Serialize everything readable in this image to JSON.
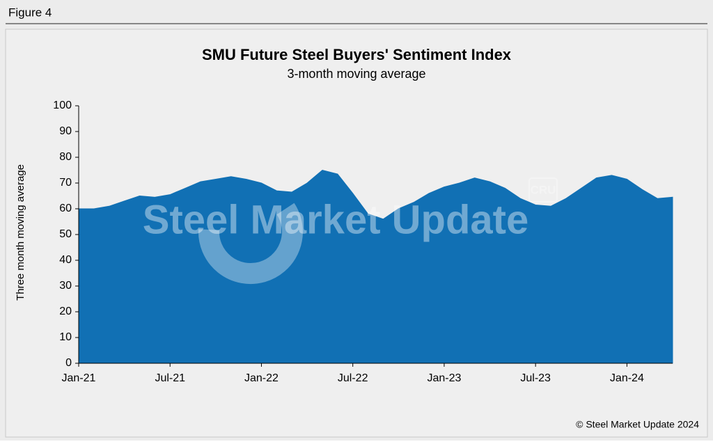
{
  "figure_label": "Figure 4",
  "copyright": "© Steel Market Update 2024",
  "chart_data": {
    "type": "area",
    "title": "SMU Future Steel Buyers' Sentiment Index",
    "subtitle": "3-month moving average",
    "y_label": "Three month moving average",
    "watermark": "Steel Market Update",
    "watermark_badge": "CRU",
    "color": "#1170b4",
    "categories": [
      "Jan-21",
      null,
      null,
      null,
      null,
      null,
      "Jul-21",
      null,
      null,
      null,
      null,
      null,
      "Jan-22",
      null,
      null,
      null,
      null,
      null,
      "Jul-22",
      null,
      null,
      null,
      null,
      null,
      "Jan-23",
      null,
      null,
      null,
      null,
      null,
      "Jul-23",
      null,
      null,
      null,
      null,
      null,
      "Jan-24",
      null,
      null,
      null
    ],
    "values": [
      60,
      60,
      61,
      63,
      65,
      64.5,
      65.5,
      68,
      70.5,
      71.5,
      72.5,
      71.5,
      70,
      67,
      66.5,
      70,
      75,
      73.5,
      66,
      58,
      56,
      60,
      62.5,
      66,
      68.5,
      70,
      72,
      70.5,
      68,
      64,
      61.5,
      61,
      64,
      68,
      72,
      73,
      71.5,
      67.5,
      64,
      64.5
    ],
    "ylim": [
      0,
      100
    ],
    "yticks": [
      0,
      10,
      20,
      30,
      40,
      50,
      60,
      70,
      80,
      90,
      100
    ]
  }
}
